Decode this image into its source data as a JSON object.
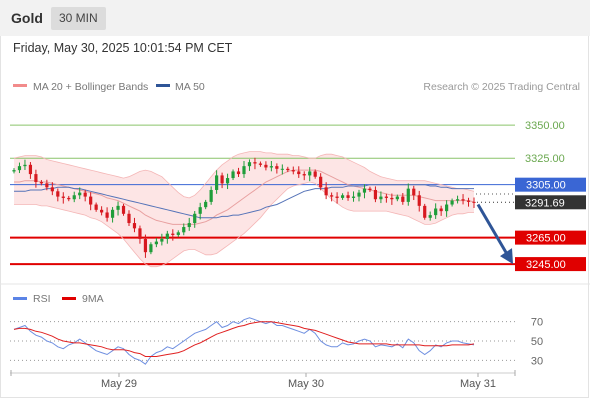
{
  "header": {
    "title": "Gold",
    "interval": "30 MIN"
  },
  "datetime": "Friday, May 30, 2025 10:01:54 PM CET",
  "legend": {
    "ma20_bb": "MA 20 + Bollinger Bands",
    "ma50": "MA 50",
    "copyright": "Research © 2025 Trading Central",
    "rsi": "RSI",
    "ma9": "9MA"
  },
  "colors": {
    "up": "#1f9d3a",
    "down": "#d71920",
    "bands": "#fde0e0",
    "ma20": "#e8a0a0",
    "ma50": "#5573b8",
    "rsi": "#6f8fe0",
    "ma9": "#e02020",
    "support": "#e00000",
    "resistance": "#8ac46a",
    "pivot": "#3a66d4"
  },
  "chart_data": [
    {
      "type": "candlestick",
      "title": "Gold 30 MIN",
      "x_ticks": [
        "May 29",
        "May 30",
        "May 31"
      ],
      "ylim": [
        3236,
        3372
      ],
      "levels": [
        {
          "label": "3350.00",
          "value": 3350,
          "kind": "resistance"
        },
        {
          "label": "3325.00",
          "value": 3325,
          "kind": "resistance"
        },
        {
          "label": "3305.00",
          "value": 3305,
          "kind": "pivot"
        },
        {
          "label": "3265.00",
          "value": 3265,
          "kind": "support"
        },
        {
          "label": "3245.00",
          "value": 3245,
          "kind": "support"
        }
      ],
      "last_price": {
        "label": "3291.69",
        "value": 3291.69
      },
      "arrow_target": 3245,
      "closes": [
        3316,
        3319,
        3320,
        3313,
        3307,
        3306,
        3303,
        3300,
        3296,
        3295,
        3294,
        3297,
        3299,
        3296,
        3290,
        3286,
        3284,
        3280,
        3286,
        3289,
        3283,
        3276,
        3272,
        3264,
        3254,
        3260,
        3262,
        3264,
        3268,
        3267,
        3269,
        3273,
        3276,
        3283,
        3288,
        3292,
        3301,
        3312,
        3306,
        3310,
        3315,
        3313,
        3319,
        3322,
        3321,
        3320,
        3318,
        3319,
        3317,
        3317,
        3316,
        3315,
        3313,
        3312,
        3315,
        3311,
        3303,
        3297,
        3296,
        3295,
        3297,
        3295,
        3296,
        3299,
        3302,
        3301,
        3294,
        3296,
        3295,
        3294,
        3296,
        3292,
        3302,
        3297,
        3289,
        3280,
        3282,
        3287,
        3285,
        3290,
        3293,
        3294,
        3293,
        3292,
        3291.69
      ],
      "ma20": [
        3307,
        3307,
        3308,
        3308,
        3308,
        3307,
        3307,
        3306,
        3305,
        3304,
        3303,
        3302,
        3301,
        3300,
        3299,
        3298,
        3297,
        3295,
        3294,
        3293,
        3291,
        3289,
        3287,
        3285,
        3282,
        3280,
        3278,
        3277,
        3276,
        3275,
        3275,
        3275,
        3275,
        3275,
        3276,
        3277,
        3279,
        3282,
        3284,
        3286,
        3289,
        3292,
        3295,
        3298,
        3301,
        3304,
        3307,
        3309,
        3311,
        3313,
        3315,
        3316,
        3316,
        3316,
        3316,
        3316,
        3315,
        3313,
        3311,
        3309,
        3307,
        3305,
        3304,
        3303,
        3302,
        3301,
        3300,
        3299,
        3298,
        3297,
        3297,
        3297,
        3297,
        3297,
        3296,
        3295,
        3294,
        3293,
        3293,
        3293,
        3293,
        3293,
        3293,
        3293,
        3292
      ],
      "bb_upper": [
        3325,
        3326,
        3327,
        3327,
        3327,
        3326,
        3324,
        3323,
        3322,
        3321,
        3320,
        3319,
        3318,
        3317,
        3316,
        3315,
        3314,
        3313,
        3312,
        3311,
        3310,
        3311,
        3313,
        3315,
        3316,
        3315,
        3313,
        3311,
        3307,
        3303,
        3299,
        3296,
        3295,
        3297,
        3301,
        3306,
        3311,
        3316,
        3320,
        3323,
        3326,
        3328,
        3329,
        3330,
        3330,
        3330,
        3329,
        3329,
        3328,
        3328,
        3328,
        3327,
        3327,
        3326,
        3325,
        3325,
        3327,
        3328,
        3328,
        3327,
        3326,
        3324,
        3322,
        3320,
        3318,
        3315,
        3313,
        3311,
        3310,
        3309,
        3308,
        3308,
        3308,
        3308,
        3308,
        3308,
        3307,
        3306,
        3305,
        3304,
        3303,
        3302,
        3302,
        3301,
        3300
      ],
      "bb_lower": [
        3290,
        3290,
        3290,
        3290,
        3290,
        3289,
        3289,
        3288,
        3287,
        3286,
        3285,
        3284,
        3283,
        3282,
        3280,
        3279,
        3277,
        3274,
        3271,
        3268,
        3264,
        3259,
        3254,
        3249,
        3245,
        3243,
        3243,
        3244,
        3246,
        3249,
        3252,
        3255,
        3256,
        3256,
        3254,
        3252,
        3252,
        3253,
        3256,
        3259,
        3262,
        3265,
        3268,
        3272,
        3276,
        3280,
        3285,
        3290,
        3294,
        3298,
        3302,
        3304,
        3305,
        3306,
        3307,
        3306,
        3302,
        3298,
        3294,
        3291,
        3288,
        3286,
        3285,
        3285,
        3285,
        3285,
        3285,
        3285,
        3285,
        3284,
        3283,
        3282,
        3281,
        3279,
        3277,
        3275,
        3275,
        3276,
        3278,
        3280,
        3282,
        3283,
        3283,
        3284,
        3284
      ],
      "ma50": [
        3300,
        3300,
        3300,
        3301,
        3301,
        3301,
        3302,
        3302,
        3303,
        3303,
        3303,
        3302,
        3302,
        3301,
        3300,
        3299,
        3298,
        3297,
        3296,
        3295,
        3294,
        3293,
        3292,
        3291,
        3290,
        3289,
        3288,
        3287,
        3286,
        3285,
        3284,
        3283,
        3282,
        3281,
        3280,
        3280,
        3280,
        3280,
        3281,
        3281,
        3282,
        3282,
        3283,
        3284,
        3285,
        3286,
        3288,
        3289,
        3290,
        3292,
        3294,
        3296,
        3298,
        3300,
        3301,
        3302,
        3302,
        3302,
        3303,
        3303,
        3303,
        3304,
        3304,
        3304,
        3304,
        3305,
        3305,
        3305,
        3305,
        3305,
        3305,
        3305,
        3305,
        3305,
        3305,
        3305,
        3304,
        3304,
        3303,
        3303,
        3302,
        3302,
        3302,
        3302,
        3302
      ]
    },
    {
      "type": "line",
      "title": "RSI",
      "ylim": [
        20,
        80
      ],
      "y_ticks": [
        70,
        50,
        30
      ],
      "series": [
        {
          "name": "RSI",
          "values": [
            62,
            64,
            66,
            60,
            56,
            54,
            50,
            48,
            44,
            42,
            46,
            48,
            52,
            48,
            44,
            40,
            38,
            36,
            40,
            44,
            42,
            36,
            32,
            30,
            26,
            34,
            38,
            40,
            44,
            42,
            46,
            50,
            54,
            58,
            60,
            62,
            66,
            70,
            64,
            66,
            70,
            68,
            72,
            74,
            72,
            70,
            68,
            70,
            66,
            66,
            64,
            62,
            60,
            58,
            62,
            58,
            50,
            46,
            44,
            44,
            48,
            46,
            47,
            50,
            52,
            50,
            44,
            46,
            45,
            44,
            47,
            43,
            52,
            48,
            40,
            36,
            40,
            46,
            44,
            48,
            50,
            50,
            48,
            47,
            46
          ]
        },
        {
          "name": "9MA",
          "values": [
            62,
            63,
            63,
            62,
            60,
            59,
            57,
            55,
            52,
            50,
            49,
            48,
            48,
            47,
            46,
            45,
            44,
            42,
            41,
            41,
            41,
            40,
            38,
            37,
            34,
            34,
            34,
            35,
            36,
            37,
            38,
            40,
            43,
            46,
            48,
            51,
            54,
            57,
            59,
            61,
            63,
            65,
            66,
            68,
            69,
            70,
            70,
            70,
            69,
            68,
            67,
            66,
            65,
            63,
            62,
            61,
            59,
            57,
            55,
            53,
            51,
            49,
            48,
            47,
            47,
            47,
            47,
            47,
            47,
            46,
            46,
            46,
            46,
            46,
            46,
            45,
            45,
            45,
            45,
            45,
            46,
            46,
            46,
            46,
            47
          ]
        }
      ]
    }
  ]
}
